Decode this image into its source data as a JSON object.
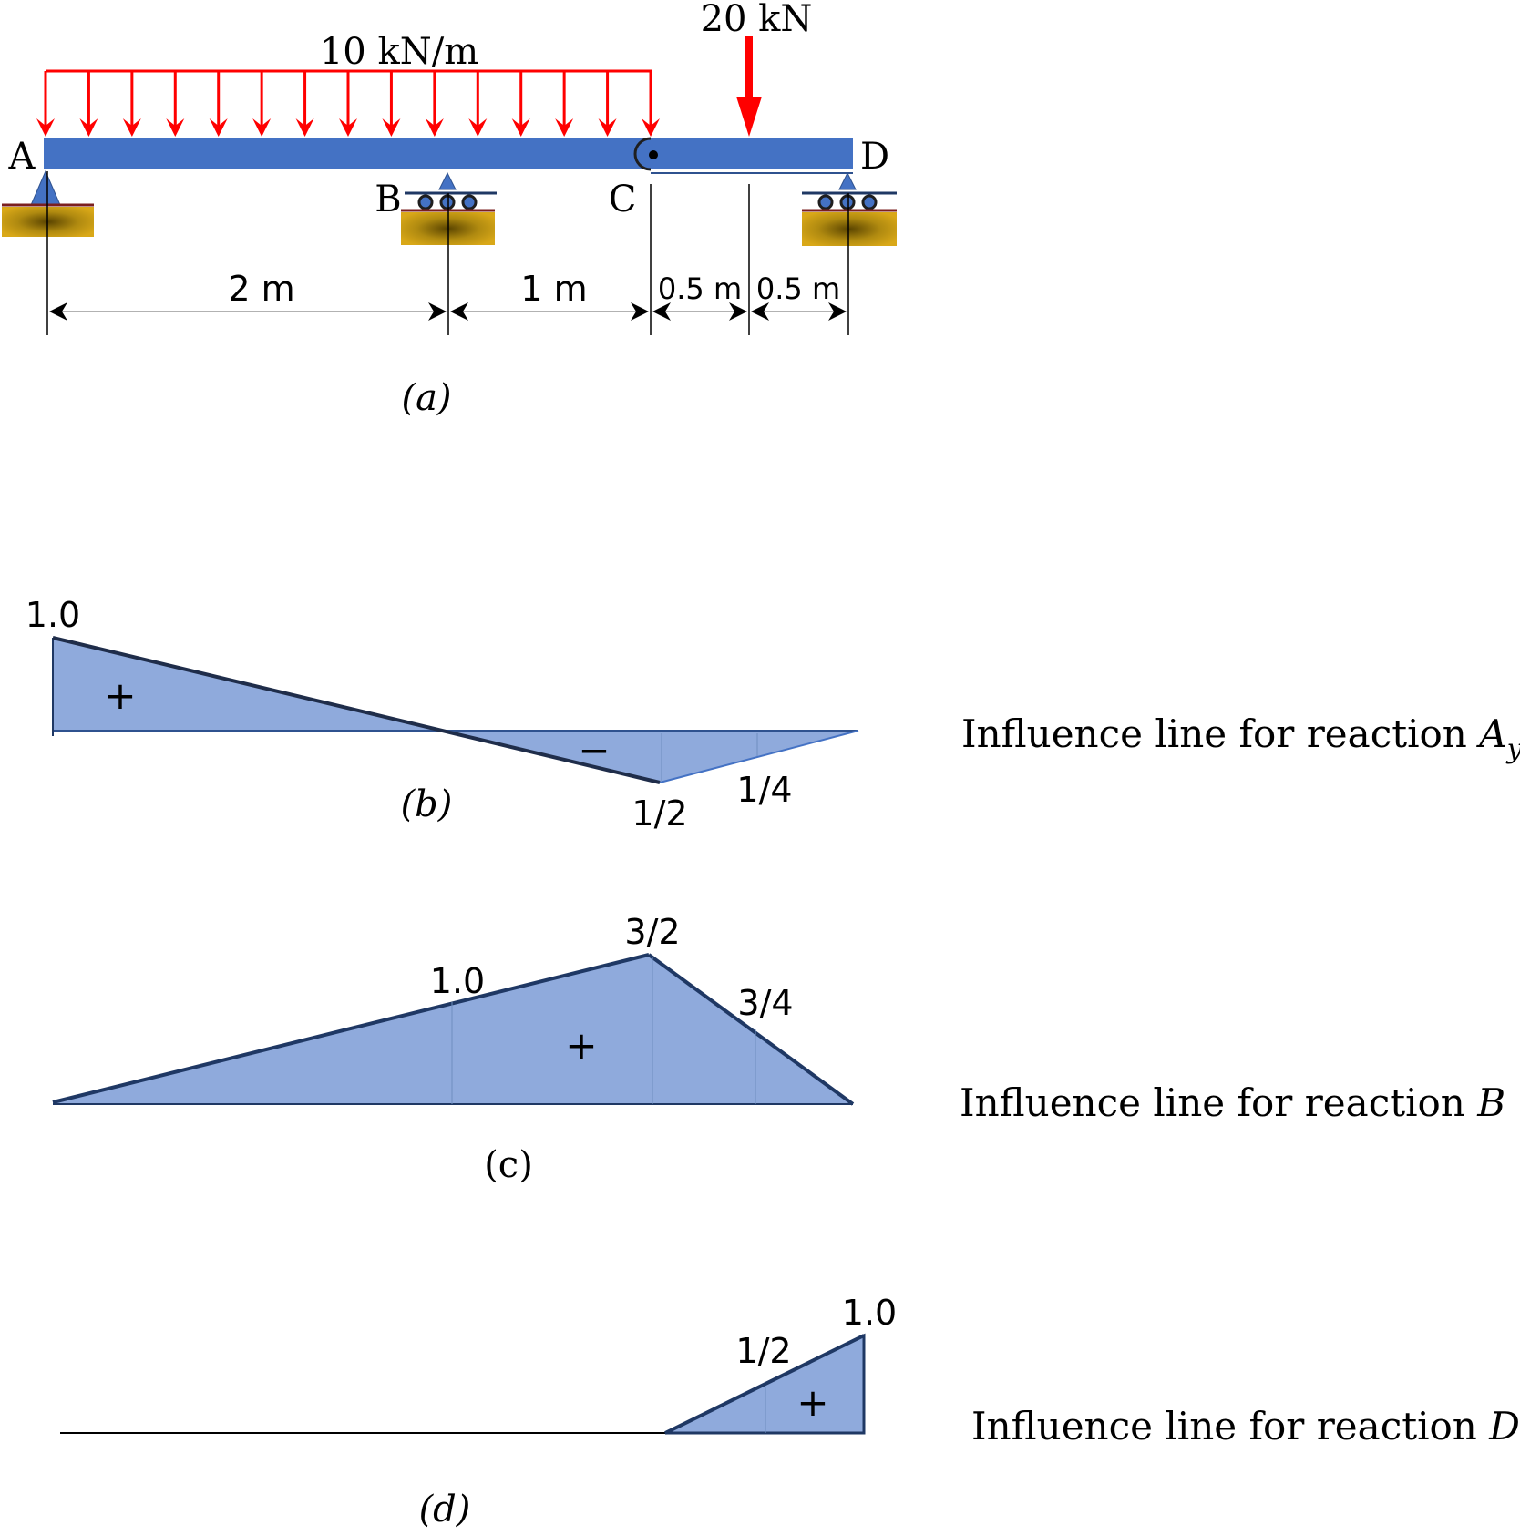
{
  "figure_a": {
    "udl_label": "10 kN/m",
    "point_load_label": "20 kN",
    "node_a": "A",
    "node_b": "B",
    "node_c": "C",
    "node_d": "D",
    "dim_ab": "2 m",
    "dim_bc": "1 m",
    "dim_c_load": "0.5 m",
    "dim_load_d": "0.5 m",
    "caption": "(a)",
    "colors": {
      "beam": "#4472c4",
      "load": "#ff0000",
      "support_block": "#c8960c",
      "fill": "#8faadc",
      "outline": "#1f3864"
    }
  },
  "figure_b": {
    "value_a": "1.0",
    "value_c": "1/2",
    "value_mid_cd": "1/4",
    "sign_positive": "+",
    "sign_negative": "−",
    "caption": "(b)",
    "title_text": "Influence line for reaction ",
    "title_var": "A",
    "title_sub": "y"
  },
  "figure_c": {
    "value_b": "1.0",
    "value_c": "3/2",
    "value_mid_cd": "3/4",
    "sign_positive": "+",
    "caption": "(c)",
    "title_text": "Influence line for reaction ",
    "title_var": "B"
  },
  "figure_d": {
    "value_d": "1.0",
    "value_mid_cd": "1/2",
    "sign_positive": "+",
    "caption": "(d)",
    "title_text": "Influence line for reaction ",
    "title_var": "D"
  }
}
